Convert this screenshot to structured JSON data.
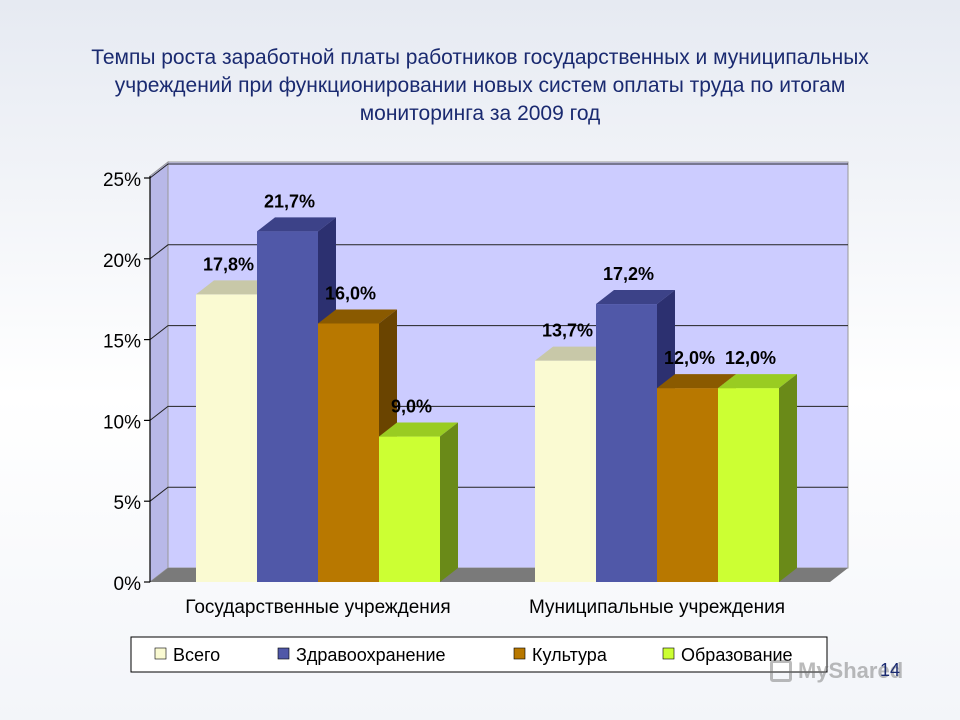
{
  "slide": {
    "title": "Темпы роста заработной платы работников государственных и муниципальных учреждений при функционировании новых систем оплаты труда по итогам мониторинга за 2009 год",
    "page_number": "14",
    "watermark": "MyShared"
  },
  "chart_data": {
    "type": "bar",
    "title": "Темпы роста заработной платы работников государственных и муниципальных учреждений при функционировании новых систем оплаты труда по итогам мониторинга за 2009 год",
    "categories": [
      "Государственные учреждения",
      "Муниципальные учреждения"
    ],
    "series": [
      {
        "name": "Всего",
        "values": [
          17.8,
          13.7
        ],
        "labels": [
          "17,8%",
          "13,7%"
        ],
        "color": "#fafad2",
        "side": "#bcbca0",
        "top": "#c8c8a8"
      },
      {
        "name": "Здравоохранение",
        "values": [
          21.7,
          17.2
        ],
        "labels": [
          "21,7%",
          "17,2%"
        ],
        "color": "#5058a8",
        "side": "#2c3070",
        "top": "#3c4288"
      },
      {
        "name": "Культура",
        "values": [
          16.0,
          12.0
        ],
        "labels": [
          "16,0%",
          "12,0%"
        ],
        "color": "#b87800",
        "side": "#6a4400",
        "top": "#8a5a00"
      },
      {
        "name": "Образование",
        "values": [
          9.0,
          12.0
        ],
        "labels": [
          "9,0%",
          "12,0%"
        ],
        "color": "#ccff33",
        "side": "#6a8a18",
        "top": "#99cc22"
      }
    ],
    "yticks": [
      "0%",
      "5%",
      "10%",
      "15%",
      "20%",
      "25%"
    ],
    "ylim": [
      0,
      25
    ],
    "grid": true,
    "legend_position": "bottom",
    "colors": {
      "wall": "#ccccff",
      "floor": "#7a7a7a"
    }
  }
}
